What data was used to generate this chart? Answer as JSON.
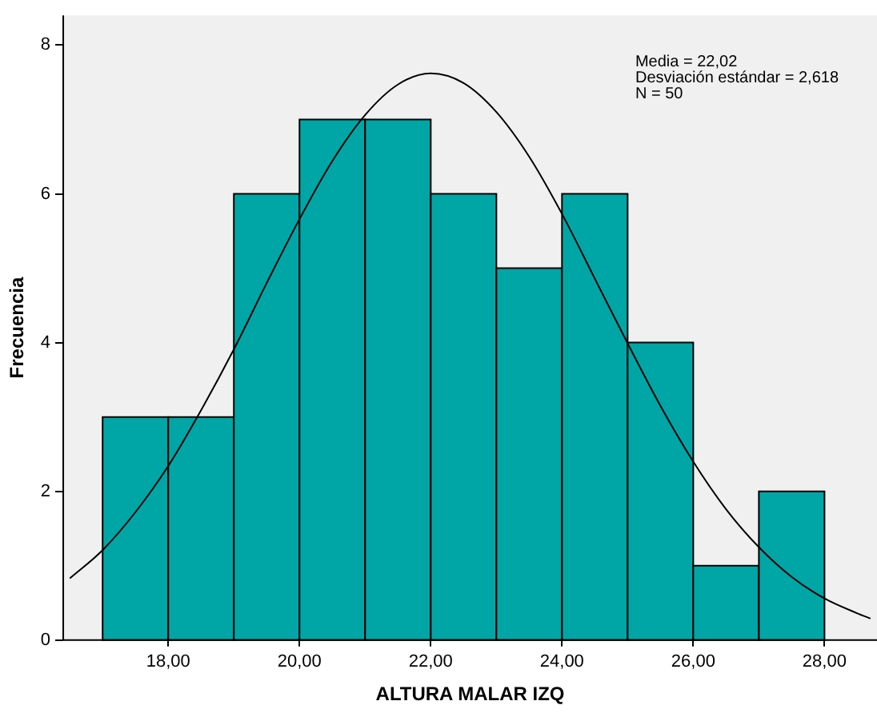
{
  "chart_data": {
    "type": "histogram",
    "xlabel": "ALTURA MALAR IZQ",
    "ylabel": "Frecuencia",
    "bins": [
      17,
      18,
      19,
      20,
      21,
      22,
      23,
      24,
      25,
      26,
      27,
      28
    ],
    "values": [
      3,
      3,
      6,
      7,
      7,
      6,
      5,
      6,
      4,
      1,
      2
    ],
    "color": "#00a6a6",
    "series": [
      {
        "type": "line",
        "color": "#000000",
        "x": [
          16.5,
          17,
          17.5,
          18,
          18.5,
          19,
          19.5,
          20,
          20.5,
          21,
          21.5,
          22,
          22.5,
          23,
          23.5,
          24,
          24.5,
          25,
          25.5,
          26,
          26.5,
          27,
          27.5,
          28,
          28.5,
          28.7
        ],
        "values": [
          0.83,
          1.21,
          1.72,
          2.34,
          3.09,
          3.91,
          4.8,
          5.66,
          6.44,
          7.06,
          7.47,
          7.62,
          7.49,
          7.1,
          6.5,
          5.73,
          4.86,
          3.99,
          3.15,
          2.4,
          1.76,
          1.25,
          0.85,
          0.56,
          0.36,
          0.29
        ]
      }
    ],
    "xlim": [
      16.4,
      28.8
    ],
    "ylim": [
      0,
      8.4
    ],
    "xticks": [
      {
        "value": 18,
        "label": "18,00"
      },
      {
        "value": 20,
        "label": "20,00"
      },
      {
        "value": 22,
        "label": "22,00"
      },
      {
        "value": 24,
        "label": "24,00"
      },
      {
        "value": 26,
        "label": "26,00"
      },
      {
        "value": 28,
        "label": "28,00"
      }
    ],
    "yticks": [
      0,
      2,
      4,
      6,
      8
    ],
    "annotations": [
      "Media = 22,02",
      "Desviación estándar = 2,618",
      "N = 50"
    ],
    "grid": false,
    "legend": false,
    "marker": "none",
    "line_style": "solid"
  }
}
